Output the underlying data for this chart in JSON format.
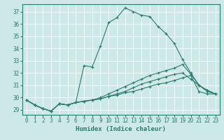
{
  "xlabel": "Humidex (Indice chaleur)",
  "background_color": "#cce8e8",
  "grid_color": "#ffffff",
  "line_color": "#2d7a6e",
  "xlim": [
    -0.5,
    23.5
  ],
  "ylim": [
    28.6,
    37.6
  ],
  "yticks": [
    29,
    30,
    31,
    32,
    33,
    34,
    35,
    36,
    37
  ],
  "xticks": [
    0,
    1,
    2,
    3,
    4,
    5,
    6,
    7,
    8,
    9,
    10,
    11,
    12,
    13,
    14,
    15,
    16,
    17,
    18,
    19,
    20,
    21,
    22,
    23
  ],
  "series": [
    {
      "x": [
        0,
        1,
        2,
        3,
        4,
        5,
        6,
        7,
        8,
        9,
        10,
        11,
        12,
        13,
        14,
        15,
        16,
        17,
        18,
        19,
        20,
        21,
        22,
        23
      ],
      "y": [
        29.8,
        29.4,
        29.1,
        28.9,
        29.5,
        29.4,
        29.6,
        32.6,
        32.5,
        34.2,
        36.1,
        36.5,
        37.3,
        37.0,
        36.7,
        36.6,
        35.8,
        35.2,
        34.4,
        33.1,
        32.0,
        31.0,
        30.6,
        30.3
      ]
    },
    {
      "x": [
        0,
        1,
        2,
        3,
        4,
        5,
        6,
        7,
        8,
        9,
        10,
        11,
        12,
        13,
        14,
        15,
        16,
        17,
        18,
        19,
        20,
        21,
        22,
        23
      ],
      "y": [
        29.8,
        29.4,
        29.1,
        28.9,
        29.5,
        29.4,
        29.6,
        29.7,
        29.8,
        30.0,
        30.3,
        30.6,
        30.9,
        31.2,
        31.5,
        31.8,
        32.0,
        32.2,
        32.4,
        32.7,
        31.9,
        31.0,
        30.6,
        30.3
      ]
    },
    {
      "x": [
        0,
        1,
        2,
        3,
        4,
        5,
        6,
        7,
        8,
        9,
        10,
        11,
        12,
        13,
        14,
        15,
        16,
        17,
        18,
        19,
        20,
        21,
        22,
        23
      ],
      "y": [
        29.8,
        29.4,
        29.1,
        28.9,
        29.5,
        29.4,
        29.6,
        29.7,
        29.8,
        29.9,
        30.1,
        30.3,
        30.5,
        30.8,
        31.1,
        31.3,
        31.5,
        31.7,
        31.9,
        32.0,
        31.5,
        31.0,
        30.5,
        30.3
      ]
    },
    {
      "x": [
        0,
        1,
        2,
        3,
        4,
        5,
        6,
        7,
        8,
        9,
        10,
        11,
        12,
        13,
        14,
        15,
        16,
        17,
        18,
        19,
        20,
        21,
        22,
        23
      ],
      "y": [
        29.8,
        29.4,
        29.1,
        28.9,
        29.5,
        29.4,
        29.6,
        29.7,
        29.8,
        29.9,
        30.1,
        30.2,
        30.4,
        30.5,
        30.7,
        30.9,
        31.1,
        31.2,
        31.4,
        31.6,
        31.8,
        30.5,
        30.3,
        30.3
      ]
    }
  ]
}
